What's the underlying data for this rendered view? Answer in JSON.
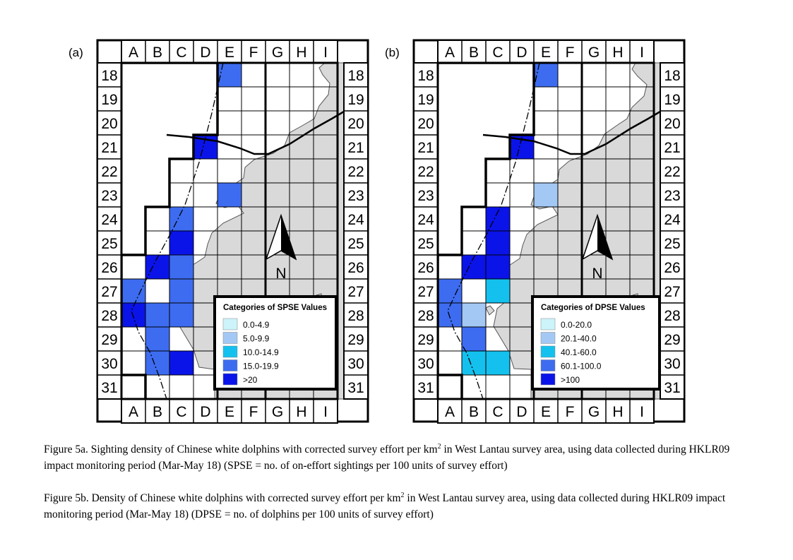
{
  "columns": [
    "A",
    "B",
    "C",
    "D",
    "E",
    "F",
    "G",
    "H",
    "I"
  ],
  "rows": [
    "18",
    "19",
    "20",
    "21",
    "22",
    "23",
    "24",
    "25",
    "26",
    "27",
    "28",
    "29",
    "30",
    "31"
  ],
  "north_label": "N",
  "colors": {
    "land": "#d9d9d9",
    "cat0": "#ccf4fa",
    "cat1": "#a3c8f4",
    "cat2": "#14c1ee",
    "cat3": "#3d6cf0",
    "cat4": "#0a14e8"
  },
  "panels": [
    {
      "id": "a",
      "label": "(a)",
      "legend_title": "Categories of SPSE Values",
      "legend": [
        {
          "label": "0.0-4.9",
          "cat": 0
        },
        {
          "label": "5.0-9.9",
          "cat": 1
        },
        {
          "label": "10.0-14.9",
          "cat": 2
        },
        {
          "label": "15.0-19.9",
          "cat": 3
        },
        {
          "label": ">20",
          "cat": 4
        }
      ],
      "cells": [
        {
          "col": "E",
          "row": "18",
          "cat": 3
        },
        {
          "col": "D",
          "row": "21",
          "cat": 4
        },
        {
          "col": "E",
          "row": "23",
          "cat": 3
        },
        {
          "col": "C",
          "row": "24",
          "cat": 3
        },
        {
          "col": "C",
          "row": "25",
          "cat": 4
        },
        {
          "col": "B",
          "row": "26",
          "cat": 4
        },
        {
          "col": "C",
          "row": "26",
          "cat": 3
        },
        {
          "col": "A",
          "row": "27",
          "cat": 3
        },
        {
          "col": "C",
          "row": "27",
          "cat": 3
        },
        {
          "col": "A",
          "row": "28",
          "cat": 4
        },
        {
          "col": "B",
          "row": "28",
          "cat": 3
        },
        {
          "col": "C",
          "row": "28",
          "cat": 3
        },
        {
          "col": "B",
          "row": "29",
          "cat": 3
        },
        {
          "col": "B",
          "row": "30",
          "cat": 3
        },
        {
          "col": "C",
          "row": "30",
          "cat": 4
        }
      ]
    },
    {
      "id": "b",
      "label": "(b)",
      "legend_title": "Categories of DPSE Values",
      "legend": [
        {
          "label": "0.0-20.0",
          "cat": 0
        },
        {
          "label": "20.1-40.0",
          "cat": 1
        },
        {
          "label": "40.1-60.0",
          "cat": 2
        },
        {
          "label": "60.1-100.0",
          "cat": 3
        },
        {
          "label": ">100",
          "cat": 4
        }
      ],
      "cells": [
        {
          "col": "E",
          "row": "18",
          "cat": 3
        },
        {
          "col": "D",
          "row": "21",
          "cat": 4
        },
        {
          "col": "E",
          "row": "23",
          "cat": 1
        },
        {
          "col": "C",
          "row": "24",
          "cat": 4
        },
        {
          "col": "C",
          "row": "25",
          "cat": 4
        },
        {
          "col": "B",
          "row": "26",
          "cat": 4
        },
        {
          "col": "C",
          "row": "26",
          "cat": 4
        },
        {
          "col": "A",
          "row": "27",
          "cat": 3
        },
        {
          "col": "C",
          "row": "27",
          "cat": 2
        },
        {
          "col": "A",
          "row": "28",
          "cat": 3
        },
        {
          "col": "B",
          "row": "28",
          "cat": 1
        },
        {
          "col": "B",
          "row": "29",
          "cat": 3
        },
        {
          "col": "B",
          "row": "30",
          "cat": 2
        },
        {
          "col": "C",
          "row": "30",
          "cat": 2
        }
      ]
    }
  ],
  "captions": [
    {
      "pre": "Figure 5a.  Sighting density of Chinese white dolphins with corrected survey effort per km",
      "sup": "2",
      "post": " in West Lantau survey area, using data collected during HKLR09 impact monitoring period (Mar-May 18) (SPSE = no. of on-effort sightings per 100 units of survey effort)"
    },
    {
      "pre": "Figure 5b.  Density of Chinese white dolphins with corrected survey effort per km",
      "sup": "2",
      "post": " in West Lantau survey area, using data collected during HKLR09 impact monitoring period (Mar-May 18) (DPSE = no. of dolphins per 100 units of survey effort)"
    }
  ]
}
